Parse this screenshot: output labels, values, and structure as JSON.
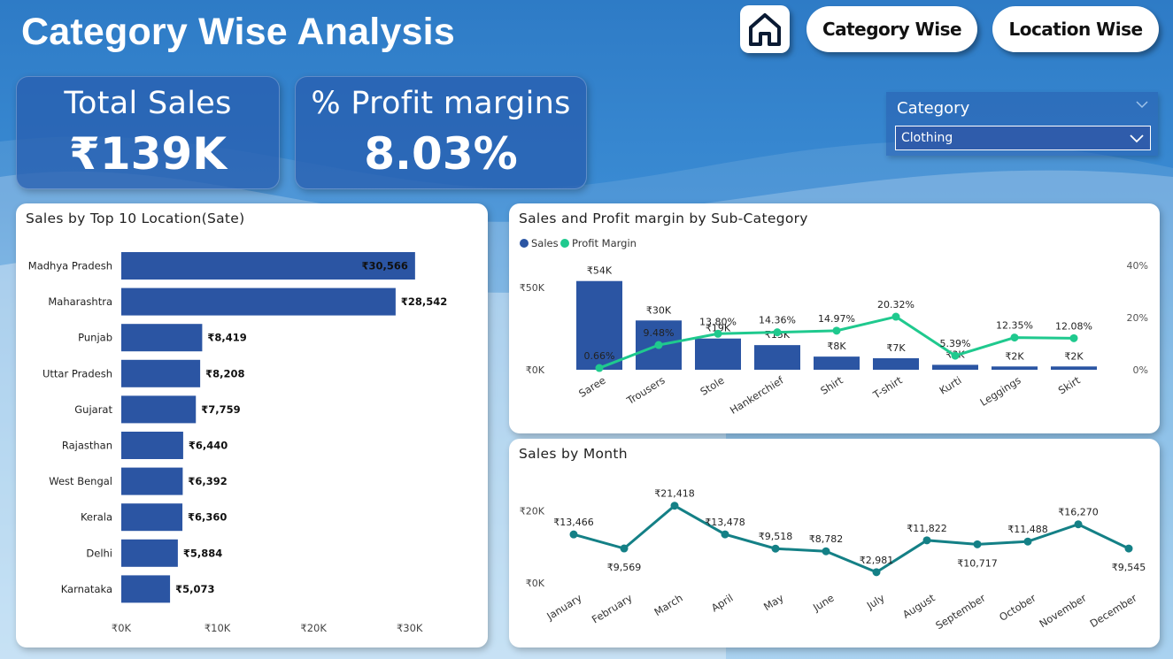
{
  "header": {
    "title": "Category Wise Analysis",
    "nav_category": "Category Wise",
    "nav_location": "Location Wise"
  },
  "kpis": {
    "total_sales_label": "Total Sales",
    "total_sales_value": "₹139K",
    "profit_label": "% Profit margins",
    "profit_value": "8.03%"
  },
  "slicer": {
    "title": "Category",
    "selected": "Clothing"
  },
  "colors": {
    "bar": "#2b55a3",
    "profit_line": "#1fc98e",
    "month_line": "#148086"
  },
  "chart_data": [
    {
      "type": "bar",
      "orientation": "horizontal",
      "title": "Sales by Top 10 Location(Sate)",
      "categories": [
        "Madhya Pradesh",
        "Maharashtra",
        "Punjab",
        "Uttar Pradesh",
        "Gujarat",
        "Rajasthan",
        "West Bengal",
        "Kerala",
        "Delhi",
        "Karnataka"
      ],
      "values": [
        30566,
        28542,
        8419,
        8208,
        7759,
        6440,
        6392,
        6360,
        5884,
        5073
      ],
      "data_labels": [
        "₹30,566",
        "₹28,542",
        "₹8,419",
        "₹8,208",
        "₹7,759",
        "₹6,440",
        "₹6,392",
        "₹6,360",
        "₹5,884",
        "₹5,073"
      ],
      "xlim": [
        0,
        35000
      ],
      "xticks": [
        0,
        10000,
        20000,
        30000
      ],
      "xtick_labels": [
        "₹0K",
        "₹10K",
        "₹20K",
        "₹30K"
      ]
    },
    {
      "type": "bar",
      "title": "Sales and Profit margin by Sub-Category",
      "categories": [
        "Saree",
        "Trousers",
        "Stole",
        "Hankerchief",
        "Shirt",
        "T-shirt",
        "Kurti",
        "Leggings",
        "Skirt"
      ],
      "legend": [
        "Sales",
        "Profit Margin"
      ],
      "legend_position": "top-left",
      "series": [
        {
          "name": "Sales",
          "type": "bar",
          "axis": "left",
          "values": [
            54000,
            30000,
            19000,
            15000,
            8000,
            7000,
            3000,
            2000,
            2000
          ],
          "data_labels": [
            "₹54K",
            "₹30K",
            "₹19K",
            "₹15K",
            "₹8K",
            "₹7K",
            "₹3K",
            "₹2K",
            "₹2K"
          ]
        },
        {
          "name": "Profit Margin",
          "type": "line",
          "axis": "right",
          "values": [
            0.66,
            9.48,
            13.8,
            14.36,
            14.97,
            20.32,
            5.39,
            12.35,
            12.08
          ],
          "data_labels": [
            "0.66%",
            "9.48%",
            "13.80%",
            "14.36%",
            "14.97%",
            "20.32%",
            "5.39%",
            "12.35%",
            "12.08%"
          ]
        }
      ],
      "ylim_left": [
        0,
        70000
      ],
      "yticks_left": [
        0,
        50000
      ],
      "ytick_labels_left": [
        "₹0K",
        "₹50K"
      ],
      "ylim_right": [
        0,
        40
      ],
      "yticks_right": [
        0,
        20,
        40
      ],
      "ytick_labels_right": [
        "0%",
        "20%",
        "40%"
      ]
    },
    {
      "type": "line",
      "title": "Sales by Month",
      "categories": [
        "January",
        "February",
        "March",
        "April",
        "May",
        "June",
        "July",
        "August",
        "September",
        "October",
        "November",
        "December"
      ],
      "values": [
        13466,
        9569,
        21418,
        13478,
        9518,
        8782,
        2981,
        11822,
        10717,
        11488,
        16270,
        9545
      ],
      "data_labels": [
        "₹13,466",
        "₹9,569",
        "₹21,418",
        "₹13,478",
        "₹9,518",
        "₹8,782",
        "₹2,981",
        "₹11,822",
        "₹10,717",
        "₹11,488",
        "₹16,270",
        "₹9,545"
      ],
      "ylim": [
        0,
        27000
      ],
      "yticks": [
        0,
        20000
      ],
      "ytick_labels": [
        "₹0K",
        "₹20K"
      ]
    }
  ]
}
